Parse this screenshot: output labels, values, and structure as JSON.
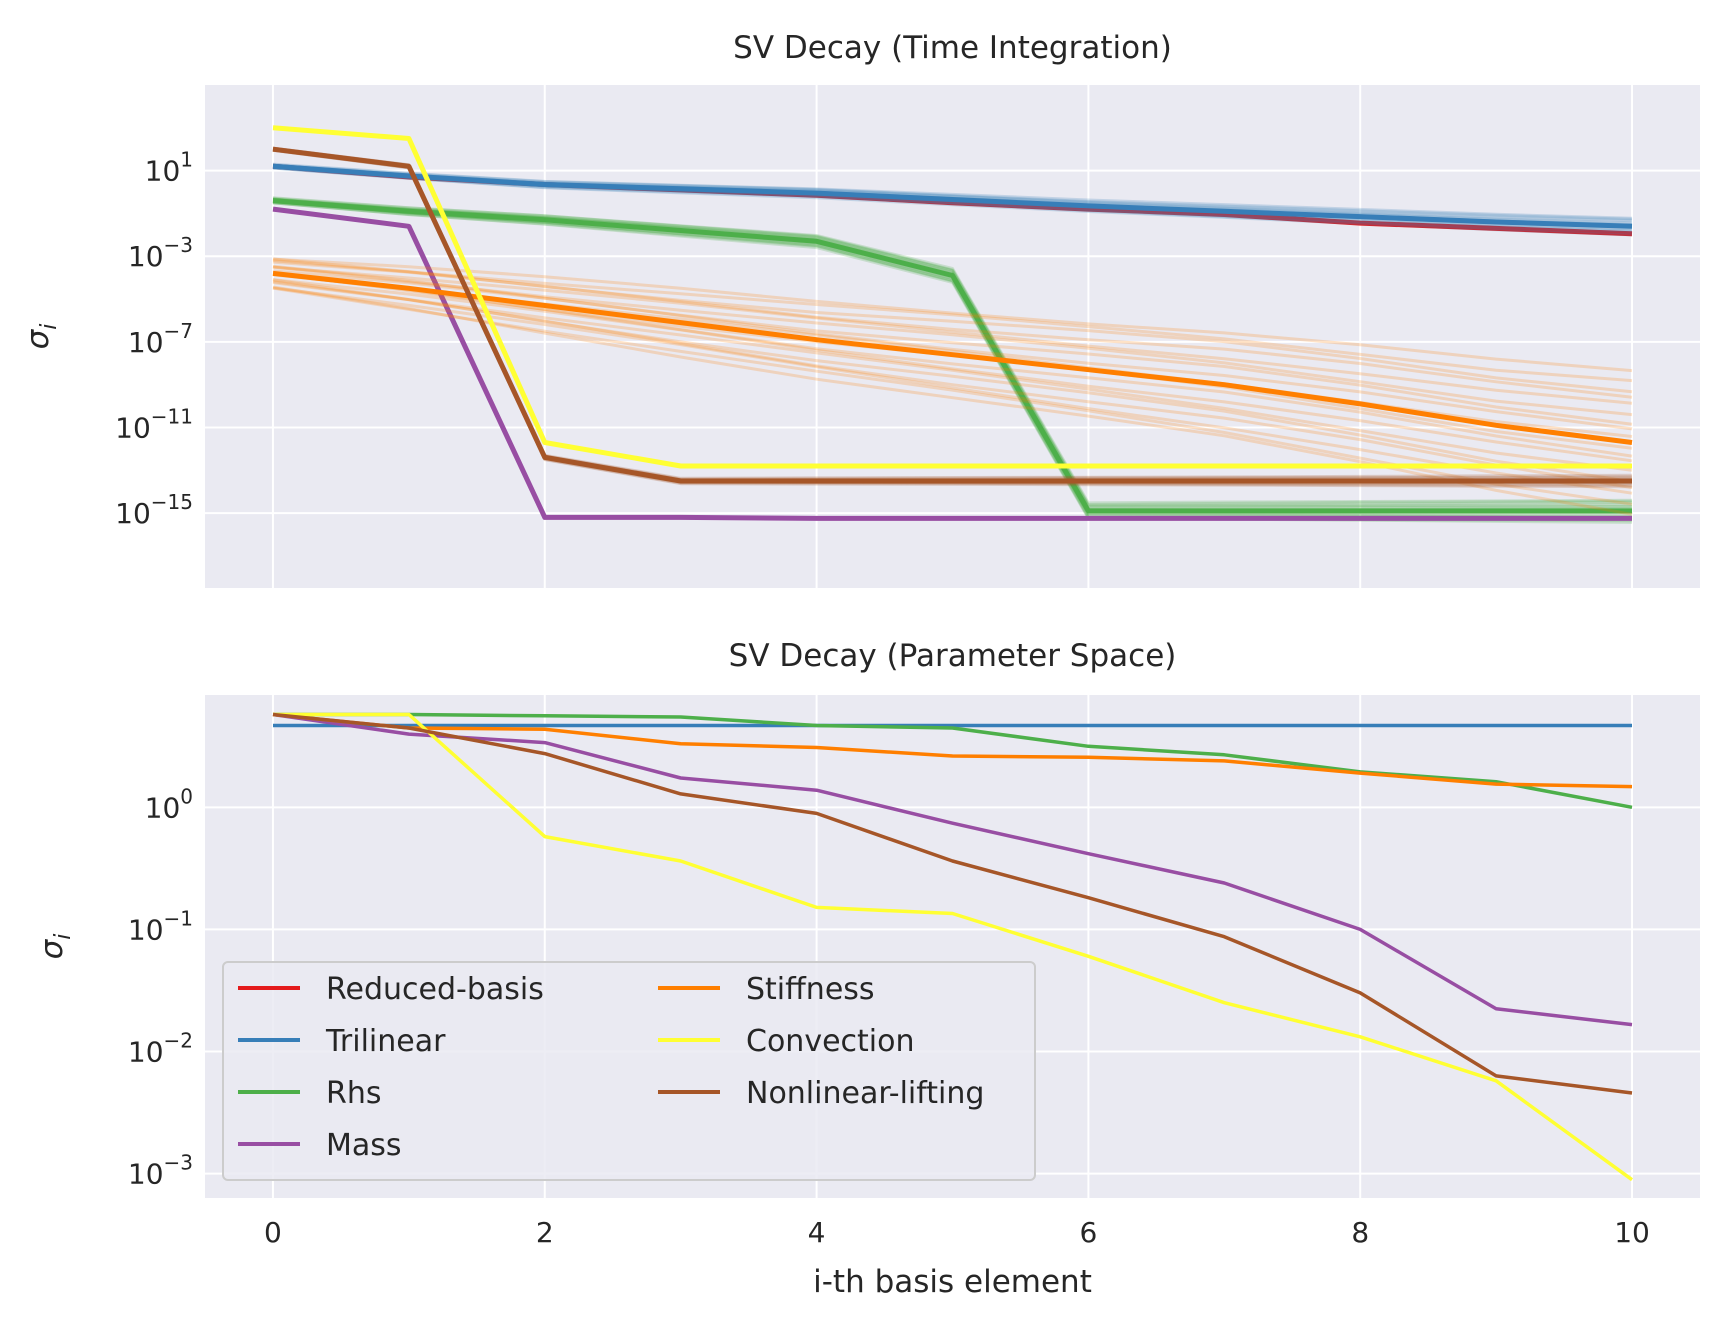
{
  "chart_data": [
    {
      "type": "line",
      "title": "SV Decay (Time Integration)",
      "ylabel": "σ_i",
      "xlabel": "",
      "yscale": "log",
      "xlim": [
        -0.5,
        10.5
      ],
      "ylim_log10": [
        -18.5,
        5.0
      ],
      "x_ticks": [
        0,
        2,
        4,
        6,
        8,
        10
      ],
      "x_ticks_labeled": false,
      "y_ticks": [
        {
          "base": "10",
          "exp": "1",
          "value": 10
        },
        {
          "base": "10",
          "exp": "−3",
          "value": 0.001
        },
        {
          "base": "10",
          "exp": "−7",
          "value": 1e-07
        },
        {
          "base": "10",
          "exp": "−11",
          "value": 1e-11
        },
        {
          "base": "10",
          "exp": "−15",
          "value": 1e-15
        }
      ],
      "x": [
        0,
        1,
        2,
        3,
        4,
        5,
        6,
        7,
        8,
        9,
        10
      ],
      "series": [
        {
          "key": "reduced-basis",
          "color": "#e41a1c",
          "spread": 0.15,
          "band": 0,
          "log10": [
            1.2,
            0.7,
            0.35,
            0.1,
            -0.15,
            -0.5,
            -0.8,
            -1.05,
            -1.45,
            -1.7,
            -1.95
          ]
        },
        {
          "key": "trilinear",
          "color": "#377eb8",
          "spread": 0.3,
          "band": 12,
          "log10": [
            1.2,
            0.75,
            0.35,
            0.15,
            -0.05,
            -0.35,
            -0.65,
            -0.9,
            -1.15,
            -1.4,
            -1.6
          ]
        },
        {
          "key": "rhs",
          "color": "#4daf4a",
          "spread": 0.4,
          "band": 16,
          "log10": [
            -0.4,
            -0.9,
            -1.3,
            -1.8,
            -2.3,
            -3.9,
            -14.9,
            -14.9,
            -14.9,
            -14.9,
            -14.9
          ]
        },
        {
          "key": "mass",
          "color": "#984ea3",
          "spread": 0.2,
          "band": 0,
          "log10": [
            -0.8,
            -1.6,
            -15.2,
            -15.2,
            -15.25,
            -15.25,
            -15.25,
            -15.25,
            -15.25,
            -15.25,
            -15.25
          ]
        },
        {
          "key": "stiffness",
          "color": "#ff7f00",
          "spread": 2.5,
          "band": 18,
          "log10": [
            -3.8,
            -4.5,
            -5.3,
            -6.1,
            -6.9,
            -7.6,
            -8.3,
            -9.0,
            -9.9,
            -10.9,
            -11.7
          ]
        },
        {
          "key": "convection",
          "color": "#ffff33",
          "spread": 0.2,
          "band": 0,
          "log10": [
            3.0,
            2.5,
            -11.7,
            -12.8,
            -12.8,
            -12.8,
            -12.8,
            -12.8,
            -12.8,
            -12.8,
            -12.8
          ]
        },
        {
          "key": "nonlinear-lifting",
          "color": "#a65628",
          "spread": 0.2,
          "band": 10,
          "log10": [
            2.0,
            1.2,
            -12.4,
            -13.5,
            -13.5,
            -13.5,
            -13.5,
            -13.5,
            -13.5,
            -13.5,
            -13.5
          ]
        }
      ]
    },
    {
      "type": "line",
      "title": "SV Decay (Parameter Space)",
      "ylabel": "σ_i",
      "xlabel": "i-th basis element",
      "yscale": "log",
      "xlim": [
        -0.5,
        10.5
      ],
      "ylim_log10": [
        -3.2,
        0.92
      ],
      "x_ticks": [
        0,
        2,
        4,
        6,
        8,
        10
      ],
      "x_ticks_labeled": true,
      "y_ticks": [
        {
          "base": "10",
          "exp": "0",
          "value": 1
        },
        {
          "base": "10",
          "exp": "−1",
          "value": 0.1
        },
        {
          "base": "10",
          "exp": "−2",
          "value": 0.01
        },
        {
          "base": "10",
          "exp": "−3",
          "value": 0.001
        }
      ],
      "x": [
        0,
        1,
        2,
        3,
        4,
        5,
        6,
        7,
        8,
        9,
        10
      ],
      "series": [
        {
          "key": "reduced-basis",
          "color": "#e41a1c",
          "log10": null
        },
        {
          "key": "trilinear",
          "color": "#377eb8",
          "log10": [
            0.67,
            0.67,
            0.67,
            0.67,
            0.67,
            0.67,
            0.67,
            0.67,
            0.67,
            0.67,
            0.67
          ]
        },
        {
          "key": "rhs",
          "color": "#4daf4a",
          "log10": [
            0.76,
            0.76,
            0.75,
            0.74,
            0.67,
            0.65,
            0.5,
            0.43,
            0.29,
            0.21,
            0.0
          ]
        },
        {
          "key": "mass",
          "color": "#984ea3",
          "log10": [
            0.76,
            0.6,
            0.53,
            0.24,
            0.14,
            -0.13,
            -0.38,
            -0.62,
            -1.0,
            -1.65,
            -1.78
          ]
        },
        {
          "key": "stiffness",
          "color": "#ff7f00",
          "log10": [
            0.76,
            0.65,
            0.64,
            0.52,
            0.49,
            0.42,
            0.41,
            0.38,
            0.28,
            0.19,
            0.17
          ]
        },
        {
          "key": "convection",
          "color": "#ffff33",
          "log10": [
            0.76,
            0.76,
            -0.24,
            -0.44,
            -0.82,
            -0.87,
            -1.22,
            -1.6,
            -1.88,
            -2.24,
            -3.05
          ]
        },
        {
          "key": "nonlinear-lifting",
          "color": "#a65628",
          "log10": [
            0.76,
            0.65,
            0.44,
            0.11,
            -0.05,
            -0.44,
            -0.74,
            -1.06,
            -1.52,
            -2.2,
            -2.34
          ]
        }
      ]
    }
  ],
  "legend": {
    "placement": "lower-left",
    "columns": 2,
    "entries": [
      {
        "key": "reduced-basis",
        "label": "Reduced-basis",
        "color": "#e41a1c"
      },
      {
        "key": "trilinear",
        "label": "Trilinear",
        "color": "#377eb8"
      },
      {
        "key": "rhs",
        "label": "Rhs",
        "color": "#4daf4a"
      },
      {
        "key": "mass",
        "label": "Mass",
        "color": "#984ea3"
      },
      {
        "key": "stiffness",
        "label": "Stiffness",
        "color": "#ff7f00"
      },
      {
        "key": "convection",
        "label": "Convection",
        "color": "#ffff33"
      },
      {
        "key": "nonlinear-lifting",
        "label": "Nonlinear-lifting",
        "color": "#a65628"
      }
    ]
  }
}
